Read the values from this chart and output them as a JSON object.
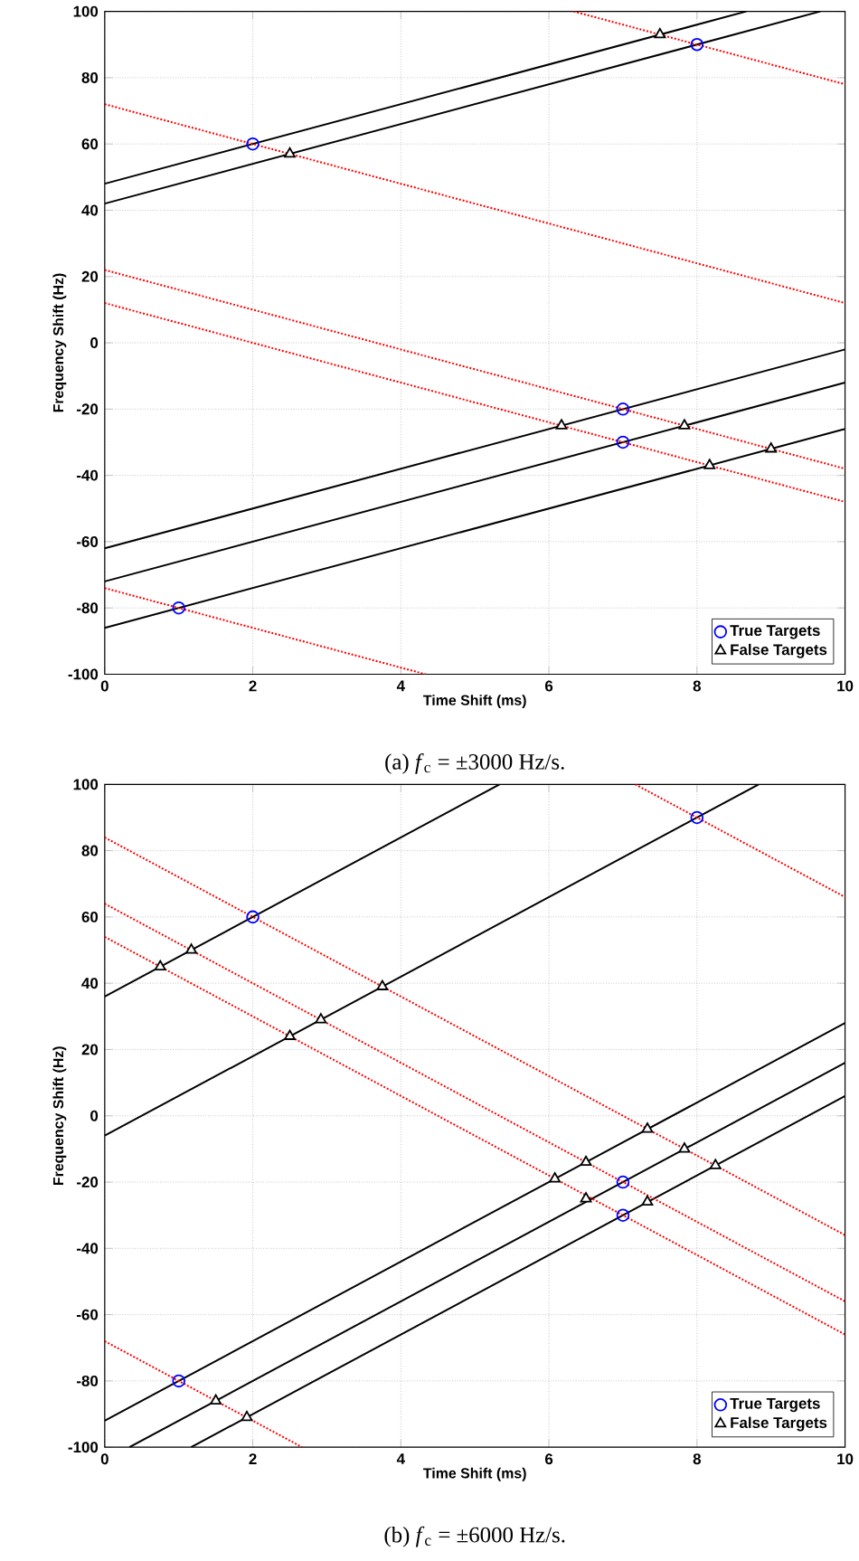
{
  "chart_data": [
    {
      "type": "line",
      "xlabel": "Time Shift (ms)",
      "ylabel": "Frequency Shift (Hz)",
      "xlim": [
        0,
        10
      ],
      "ylim": [
        -100,
        100
      ],
      "xticks": [
        0,
        2,
        4,
        6,
        8,
        10
      ],
      "yticks": [
        -100,
        -80,
        -60,
        -40,
        -20,
        0,
        20,
        40,
        60,
        80,
        100
      ],
      "grid": true,
      "legend": "bottom right",
      "annotations": [
        "(a) *f*$_{c}$ = ±3000 Hz/s."
      ],
      "series": [
        {
          "color": "#000000",
          "line_style": "solid",
          "marker": "none",
          "x": [
            0,
            8.667
          ],
          "values": [
            48,
            100
          ]
        },
        {
          "color": "#000000",
          "line_style": "solid",
          "marker": "none",
          "x": [
            0,
            9.667
          ],
          "values": [
            42,
            100
          ]
        },
        {
          "color": "#000000",
          "line_style": "solid",
          "marker": "none",
          "x": [
            0,
            10
          ],
          "values": [
            -62,
            -2
          ]
        },
        {
          "color": "#000000",
          "line_style": "solid",
          "marker": "none",
          "x": [
            0,
            10
          ],
          "values": [
            -72,
            -12
          ]
        },
        {
          "color": "#000000",
          "line_style": "solid",
          "marker": "none",
          "x": [
            0,
            10
          ],
          "values": [
            -86,
            -26
          ]
        },
        {
          "color": "#ff0000",
          "line_style": "dotted",
          "marker": "none",
          "x": [
            6.333,
            10
          ],
          "values": [
            100,
            78
          ]
        },
        {
          "color": "#ff0000",
          "line_style": "dotted",
          "marker": "none",
          "x": [
            0,
            10
          ],
          "values": [
            72,
            12
          ]
        },
        {
          "color": "#ff0000",
          "line_style": "dotted",
          "marker": "none",
          "x": [
            0,
            10
          ],
          "values": [
            22,
            -38
          ]
        },
        {
          "color": "#ff0000",
          "line_style": "dotted",
          "marker": "none",
          "x": [
            0,
            10
          ],
          "values": [
            12,
            -48
          ]
        },
        {
          "color": "#ff0000",
          "line_style": "dotted",
          "marker": "none",
          "x": [
            0,
            4.333
          ],
          "values": [
            -74,
            -100
          ]
        },
        {
          "type": "scatter",
          "name": "True Targets",
          "color": "#0000ff",
          "marker": "circle",
          "x": [
            2,
            8,
            7,
            7,
            1
          ],
          "values": [
            60,
            90,
            -20,
            -30,
            -80
          ]
        },
        {
          "type": "scatter",
          "name": "False Targets",
          "color": "#000000",
          "marker": "triangle",
          "x": [
            7.5,
            2.5,
            6.17,
            7.83,
            8.17,
            9
          ],
          "values": [
            93,
            57,
            -25,
            -25,
            -37,
            -32
          ]
        }
      ]
    },
    {
      "type": "line",
      "xlabel": "Time Shift (ms)",
      "ylabel": "Frequency Shift (Hz)",
      "xlim": [
        0,
        10
      ],
      "ylim": [
        -100,
        100
      ],
      "xticks": [
        0,
        2,
        4,
        6,
        8,
        10
      ],
      "yticks": [
        -100,
        -80,
        -60,
        -40,
        -20,
        0,
        20,
        40,
        60,
        80,
        100
      ],
      "grid": true,
      "legend": "bottom right",
      "annotations": [
        "(b) *f*$_{c}$ = ±6000 Hz/s."
      ],
      "series": [
        {
          "color": "#000000",
          "line_style": "solid",
          "marker": "none",
          "x": [
            0,
            5.333
          ],
          "values": [
            36,
            100
          ]
        },
        {
          "color": "#000000",
          "line_style": "solid",
          "marker": "none",
          "x": [
            0,
            8.833
          ],
          "values": [
            -6,
            100
          ]
        },
        {
          "color": "#000000",
          "line_style": "solid",
          "marker": "none",
          "x": [
            0.333,
            10
          ],
          "values": [
            -100,
            16
          ]
        },
        {
          "color": "#000000",
          "line_style": "solid",
          "marker": "none",
          "x": [
            1.167,
            10
          ],
          "values": [
            -100,
            6
          ]
        },
        {
          "color": "#000000",
          "line_style": "solid",
          "marker": "none",
          "x": [
            0,
            10
          ],
          "values": [
            -92,
            28
          ]
        },
        {
          "color": "#ff0000",
          "line_style": "dotted",
          "marker": "none",
          "x": [
            7.167,
            10
          ],
          "values": [
            100,
            66
          ]
        },
        {
          "color": "#ff0000",
          "line_style": "dotted",
          "marker": "none",
          "x": [
            0,
            10
          ],
          "values": [
            84,
            -36
          ]
        },
        {
          "color": "#ff0000",
          "line_style": "dotted",
          "marker": "none",
          "x": [
            0,
            10
          ],
          "values": [
            64,
            -56
          ]
        },
        {
          "color": "#ff0000",
          "line_style": "dotted",
          "marker": "none",
          "x": [
            0,
            10
          ],
          "values": [
            54,
            -66
          ]
        },
        {
          "color": "#ff0000",
          "line_style": "dotted",
          "marker": "none",
          "x": [
            0,
            2.667
          ],
          "values": [
            -68,
            -100
          ]
        },
        {
          "type": "scatter",
          "name": "True Targets",
          "color": "#0000ff",
          "marker": "circle",
          "x": [
            2,
            8,
            7,
            7,
            1
          ],
          "values": [
            60,
            90,
            -20,
            -30,
            -80
          ]
        },
        {
          "type": "scatter",
          "name": "False Targets",
          "color": "#000000",
          "marker": "triangle",
          "x": [
            0.75,
            1.17,
            2.5,
            2.92,
            3.75,
            7.33,
            6.5,
            6.08,
            7.83,
            8.25,
            6.5,
            7.33,
            1.5,
            1.92
          ],
          "values": [
            45,
            50,
            24,
            29,
            39,
            -4,
            -14,
            -19,
            -10,
            -15,
            -25,
            -26,
            -86,
            -91
          ]
        }
      ]
    }
  ]
}
